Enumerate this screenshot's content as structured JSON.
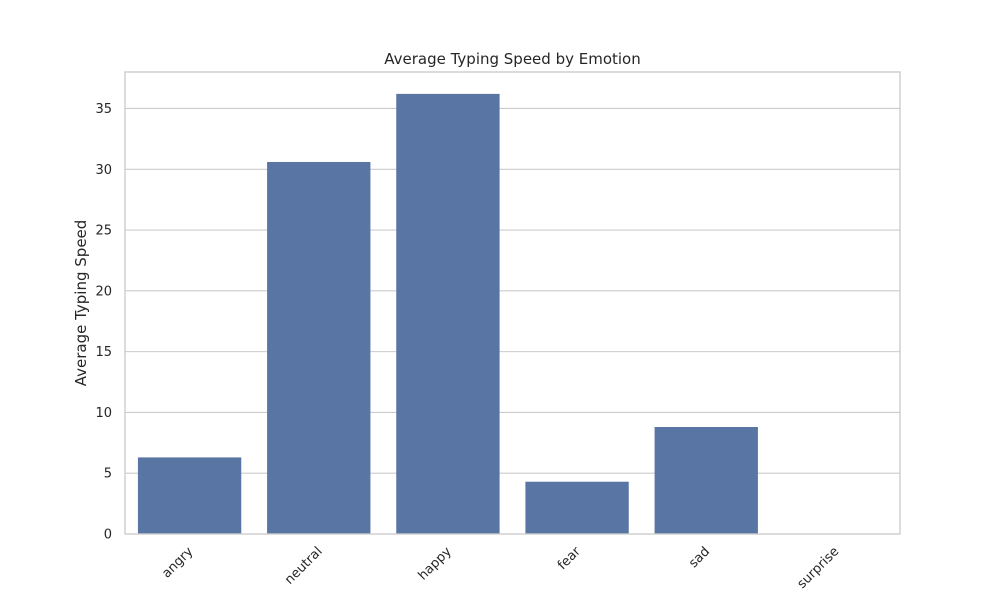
{
  "chart_data": {
    "type": "bar",
    "title": "Average Typing Speed by Emotion",
    "xlabel": "",
    "ylabel": "Average Typing Speed",
    "categories": [
      "angry",
      "neutral",
      "happy",
      "fear",
      "sad",
      "surprise"
    ],
    "values": [
      6.3,
      30.6,
      36.2,
      4.3,
      8.8,
      0
    ],
    "ylim": [
      0,
      38
    ],
    "yticks": [
      0,
      5,
      10,
      15,
      20,
      25,
      30,
      35
    ],
    "grid": true,
    "bar_color": "#5975a4",
    "grid_color": "#cccccc"
  }
}
